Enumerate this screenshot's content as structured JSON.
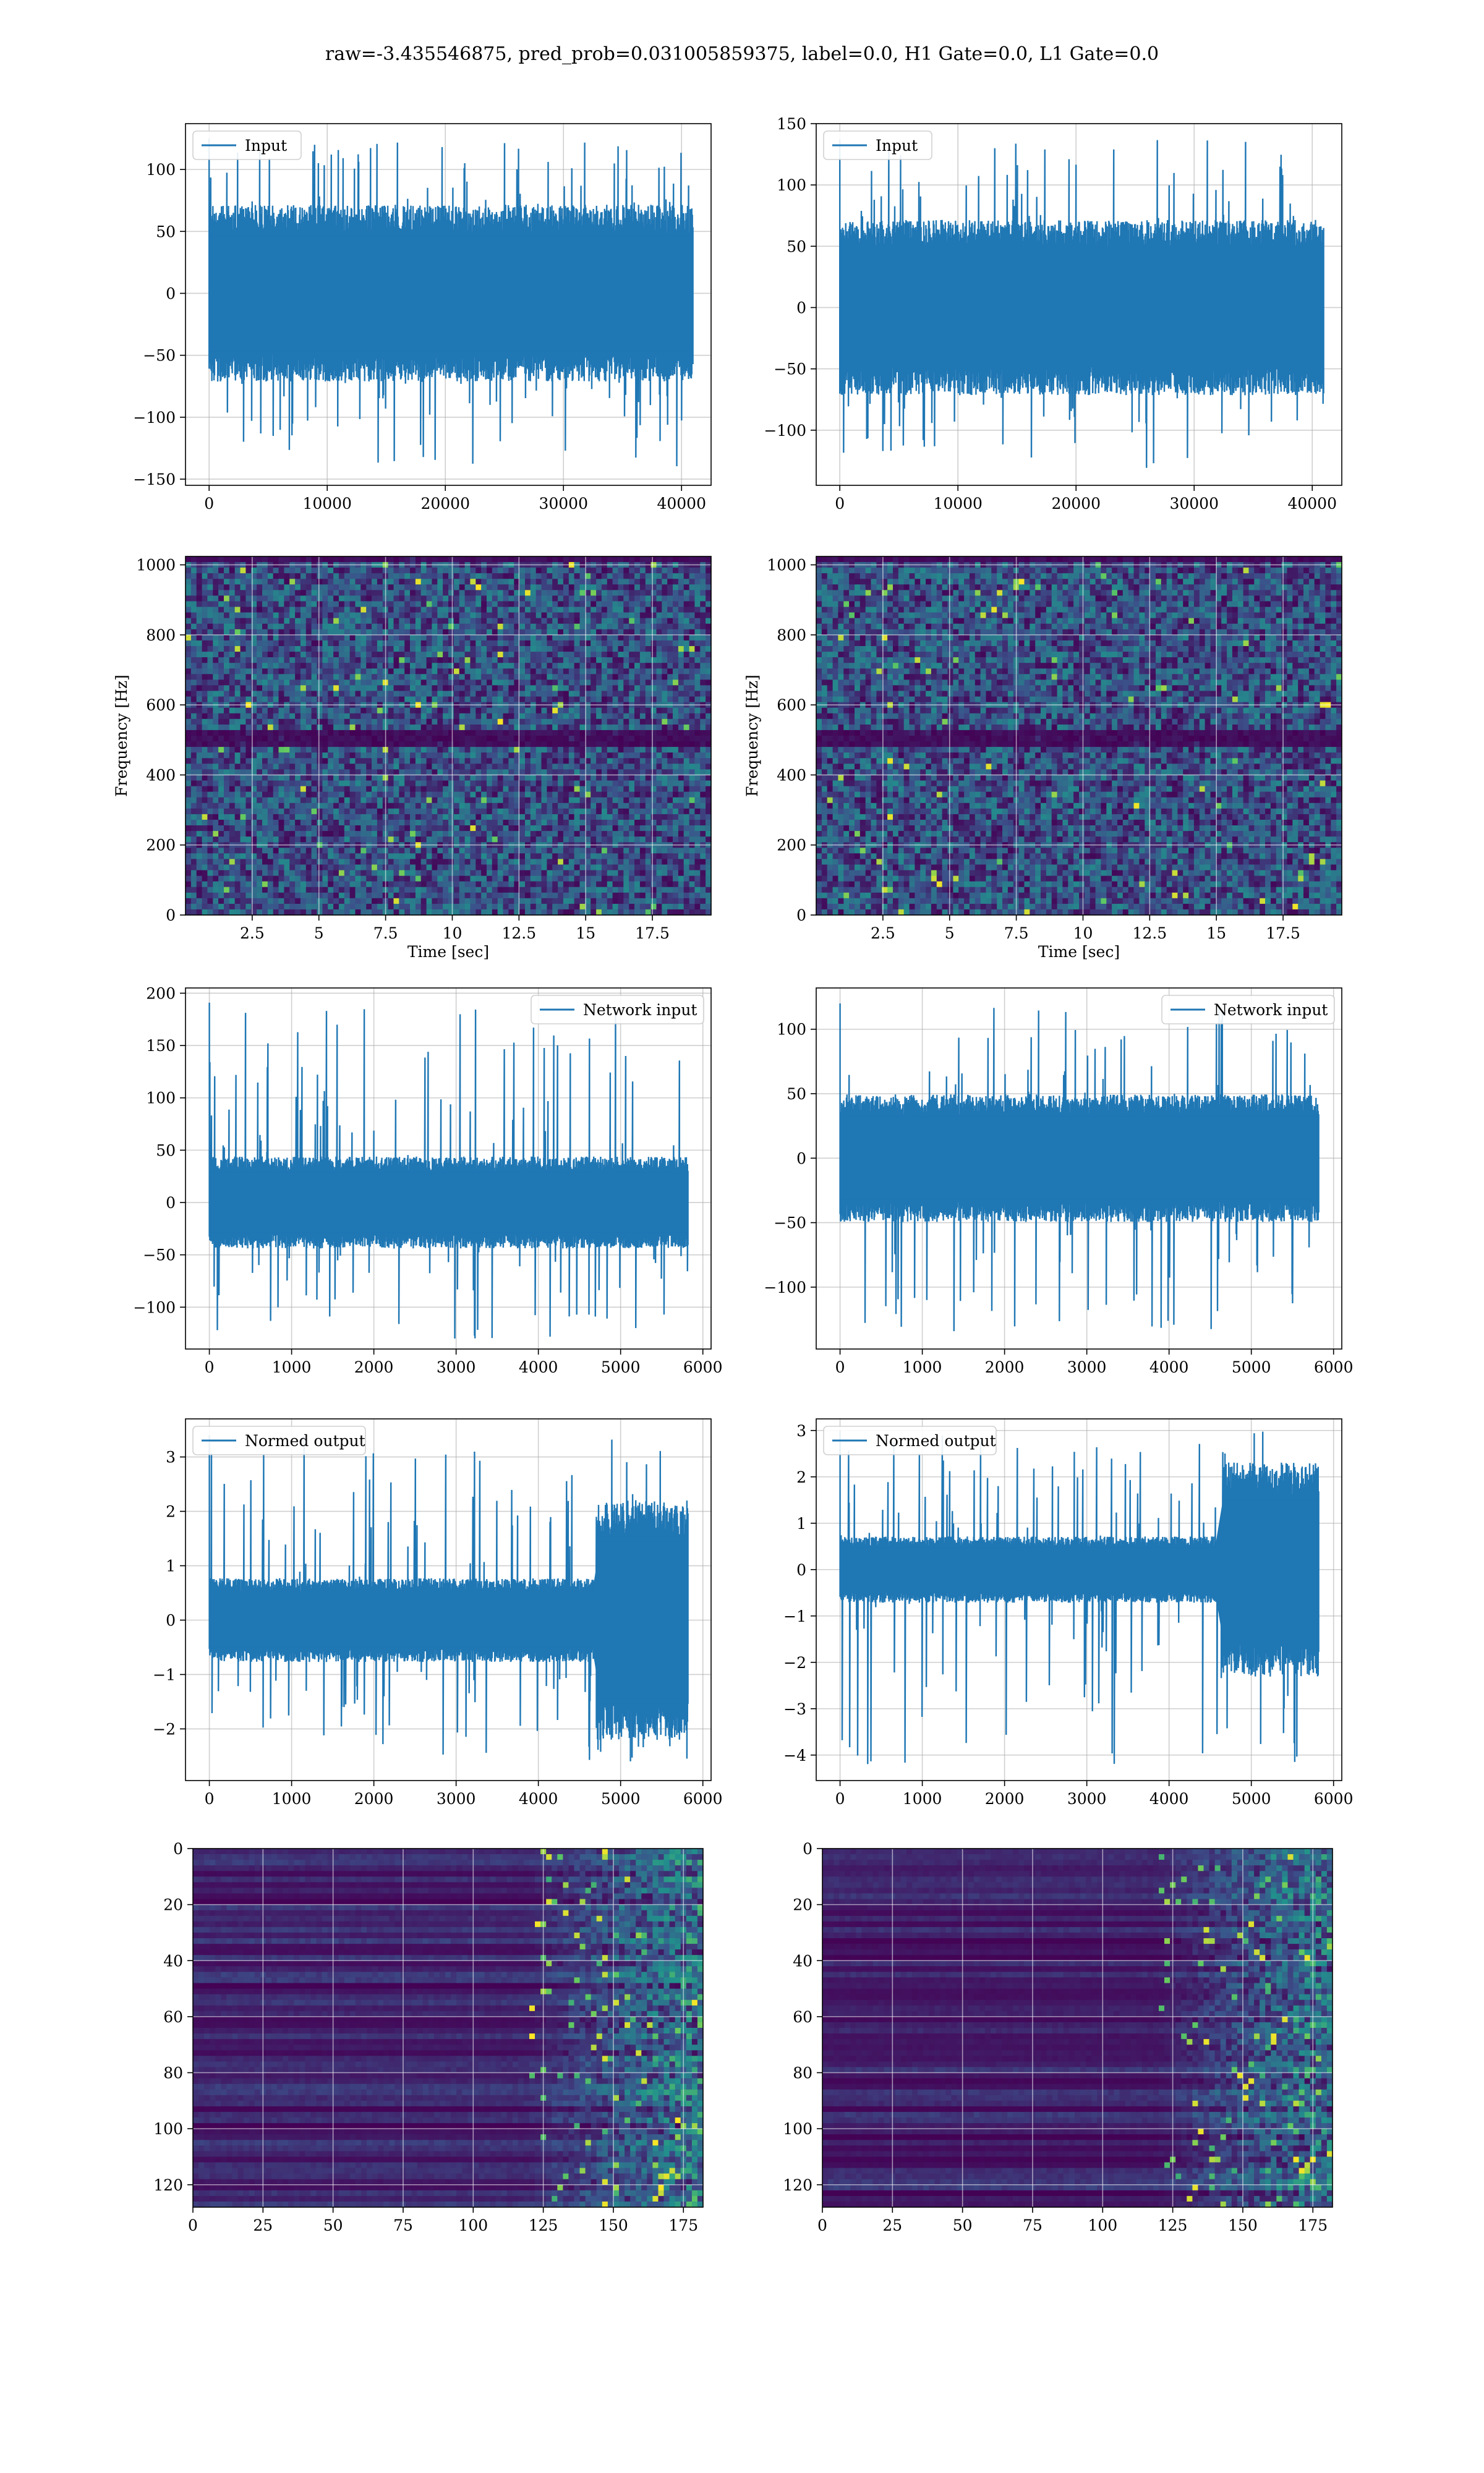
{
  "figure": {
    "title": "raw=-3.435546875, pred_prob=0.031005859375, label=0.0, H1 Gate=0.0, L1 Gate=0.0",
    "colors": {
      "line": "#1f77b4",
      "grid": "#b0b0b0",
      "viridis_low": "#440154",
      "viridis_mid": "#21918c",
      "viridis_high": "#fde725"
    }
  },
  "chart_data": [
    {
      "type": "line",
      "row": 1,
      "col": 1,
      "legend": "Input",
      "legend_loc": "upper left",
      "xlim": [
        -2000,
        42500
      ],
      "ylim": [
        -155,
        137
      ],
      "xticks": [
        0,
        10000,
        20000,
        30000,
        40000
      ],
      "yticks": [
        -150,
        -100,
        -50,
        0,
        50,
        100
      ],
      "n_points": 40960,
      "band": [
        -65,
        65
      ],
      "env_min": -140,
      "env_max": 125,
      "grid": true
    },
    {
      "type": "line",
      "row": 1,
      "col": 2,
      "legend": "Input",
      "legend_loc": "upper left",
      "xlim": [
        -2000,
        42500
      ],
      "ylim": [
        -145,
        150
      ],
      "xticks": [
        0,
        10000,
        20000,
        30000,
        40000
      ],
      "yticks": [
        -100,
        -50,
        0,
        50,
        100,
        150
      ],
      "n_points": 40960,
      "band": [
        -65,
        65
      ],
      "env_min": -132,
      "env_max": 137,
      "grid": true
    },
    {
      "type": "heatmap",
      "row": 2,
      "col": 1,
      "xlabel": "Time [sec]",
      "ylabel": "Frequency [Hz]",
      "xlim": [
        0,
        19.7
      ],
      "ylim": [
        0,
        1024
      ],
      "xticks": [
        2.5,
        5.0,
        7.5,
        10.0,
        12.5,
        15.0,
        17.5
      ],
      "yticks": [
        0,
        200,
        400,
        600,
        800,
        1000
      ],
      "colormap": "viridis",
      "grid": true,
      "dark_band_hz": [
        490,
        510
      ]
    },
    {
      "type": "heatmap",
      "row": 2,
      "col": 2,
      "xlabel": "Time [sec]",
      "ylabel": "Frequency [Hz]",
      "xlim": [
        0,
        19.7
      ],
      "ylim": [
        0,
        1024
      ],
      "xticks": [
        2.5,
        5.0,
        7.5,
        10.0,
        12.5,
        15.0,
        17.5
      ],
      "yticks": [
        0,
        200,
        400,
        600,
        800,
        1000
      ],
      "colormap": "viridis",
      "grid": true,
      "dark_band_hz": [
        490,
        510
      ]
    },
    {
      "type": "line",
      "row": 3,
      "col": 1,
      "legend": "Network input",
      "legend_loc": "upper right",
      "xlim": [
        -290,
        6100
      ],
      "ylim": [
        -140,
        205
      ],
      "xticks": [
        0,
        1000,
        2000,
        3000,
        4000,
        5000,
        6000
      ],
      "yticks": [
        -100,
        -50,
        0,
        50,
        100,
        150,
        200
      ],
      "n_points": 5820,
      "band": [
        -40,
        40
      ],
      "env_min": -130,
      "env_max": 191,
      "grid": true
    },
    {
      "type": "line",
      "row": 3,
      "col": 2,
      "legend": "Network input",
      "legend_loc": "upper right",
      "xlim": [
        -290,
        6100
      ],
      "ylim": [
        -148,
        132
      ],
      "xticks": [
        0,
        1000,
        2000,
        3000,
        4000,
        5000,
        6000
      ],
      "yticks": [
        -100,
        -50,
        0,
        50,
        100
      ],
      "n_points": 5820,
      "band": [
        -45,
        45
      ],
      "env_min": -135,
      "env_max": 120,
      "grid": true
    },
    {
      "type": "line",
      "row": 4,
      "col": 1,
      "legend": "Normed output",
      "legend_loc": "upper left",
      "xlim": [
        -290,
        6100
      ],
      "ylim": [
        -2.95,
        3.7
      ],
      "xticks": [
        0,
        1000,
        2000,
        3000,
        4000,
        5000,
        6000
      ],
      "yticks": [
        -2,
        -1,
        0,
        1,
        2,
        3
      ],
      "n_points": 5820,
      "band": [
        -0.7,
        0.7
      ],
      "burst_from": 4700,
      "burst_band": [
        -2.0,
        2.0
      ],
      "env_min": -2.6,
      "env_max": 3.4,
      "grid": true
    },
    {
      "type": "line",
      "row": 4,
      "col": 2,
      "legend": "Normed output",
      "legend_loc": "upper left",
      "xlim": [
        -290,
        6100
      ],
      "ylim": [
        -4.55,
        3.25
      ],
      "xticks": [
        0,
        1000,
        2000,
        3000,
        4000,
        5000,
        6000
      ],
      "yticks": [
        -4,
        -3,
        -2,
        -1,
        0,
        1,
        2,
        3
      ],
      "n_points": 5820,
      "band": [
        -0.65,
        0.65
      ],
      "burst_from": 4650,
      "burst_band": [
        -2.1,
        2.1
      ],
      "env_min": -4.2,
      "env_max": 3.0,
      "grid": true
    },
    {
      "type": "heatmap",
      "row": 5,
      "col": 1,
      "xlim": [
        0,
        182
      ],
      "ylim": [
        128,
        0
      ],
      "xticks": [
        0,
        25,
        50,
        75,
        100,
        125,
        150,
        175
      ],
      "yticks": [
        0,
        20,
        40,
        60,
        80,
        100,
        120
      ],
      "colormap": "viridis",
      "grid": true,
      "active_from": 120
    },
    {
      "type": "heatmap",
      "row": 5,
      "col": 2,
      "xlim": [
        0,
        182
      ],
      "ylim": [
        128,
        0
      ],
      "xticks": [
        0,
        25,
        50,
        75,
        100,
        125,
        150,
        175
      ],
      "yticks": [
        0,
        20,
        40,
        60,
        80,
        100,
        120
      ],
      "colormap": "viridis",
      "grid": true,
      "active_from": 120
    }
  ]
}
